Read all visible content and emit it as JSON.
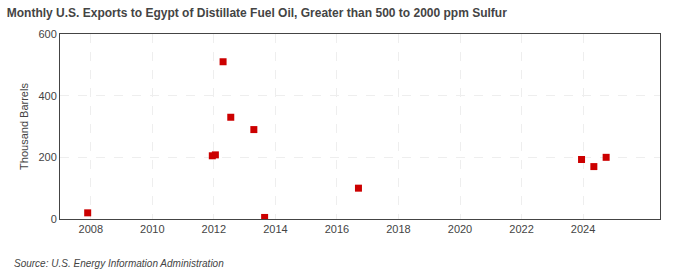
{
  "chart_data": {
    "type": "scatter",
    "title": "Monthly U.S. Exports to Egypt of Distillate Fuel Oil, Greater than 500 to 2000 ppm Sulfur",
    "ylabel": "Thousand Barrels",
    "annotation": "Source: U.S. Energy Information Administration",
    "x": [
      2007.9,
      2011.95,
      2012.05,
      2012.3,
      2012.55,
      2013.3,
      2013.65,
      2016.7,
      2023.95,
      2024.35,
      2024.75
    ],
    "values": [
      20,
      205,
      208,
      510,
      330,
      290,
      5,
      100,
      193,
      170,
      200
    ],
    "color": "#cc0000",
    "marker": "square",
    "xlim": [
      2007.0,
      2026.5
    ],
    "xticks": [
      2008,
      2010,
      2012,
      2014,
      2016,
      2018,
      2020,
      2022,
      2024
    ],
    "ylim": [
      0,
      600
    ],
    "yticks": [
      0,
      200,
      400,
      600
    ],
    "grid": true
  }
}
